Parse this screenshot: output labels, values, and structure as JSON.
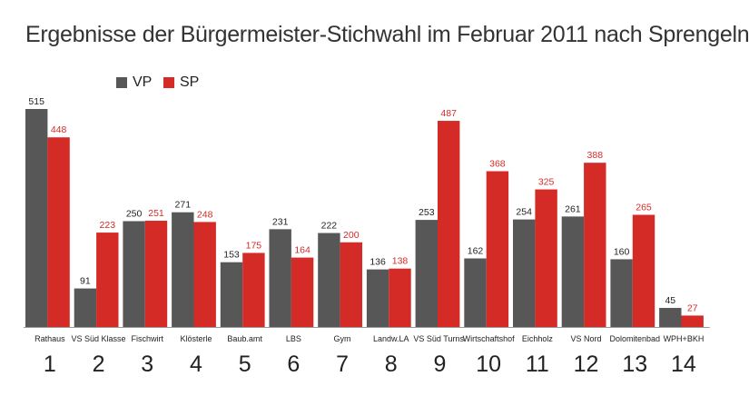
{
  "title": "Ergebnisse der Bürgermeister-Stichwahl im Februar 2011 nach Sprengeln",
  "colors": {
    "VP": "#575757",
    "SP": "#d42b27",
    "axis": "#999999",
    "text": "#222222"
  },
  "chart_data": {
    "type": "bar",
    "title": "Ergebnisse der Bürgermeister-Stichwahl im Februar 2011 nach Sprengeln",
    "xlabel": "",
    "ylabel": "",
    "ylim": [
      0,
      515
    ],
    "grid": false,
    "legend": "top-left",
    "categories": [
      "Rathaus",
      "VS Süd Klasse",
      "Fischwirt",
      "Klösterle",
      "Baub.amt",
      "LBS",
      "Gym",
      "Landw.LA",
      "VS Süd Turns.",
      "Wirtschaftshof",
      "Eichholz",
      "VS Nord",
      "Dolomitenbad",
      "WPH+BKH"
    ],
    "numbers": [
      "1",
      "2",
      "3",
      "4",
      "5",
      "6",
      "7",
      "8",
      "9",
      "10",
      "11",
      "12",
      "13",
      "14"
    ],
    "series": [
      {
        "name": "VP",
        "values": [
          515,
          91,
          250,
          271,
          153,
          231,
          222,
          136,
          253,
          162,
          254,
          261,
          160,
          45
        ]
      },
      {
        "name": "SP",
        "values": [
          448,
          223,
          251,
          248,
          175,
          164,
          200,
          138,
          487,
          368,
          325,
          388,
          265,
          27
        ]
      }
    ]
  }
}
